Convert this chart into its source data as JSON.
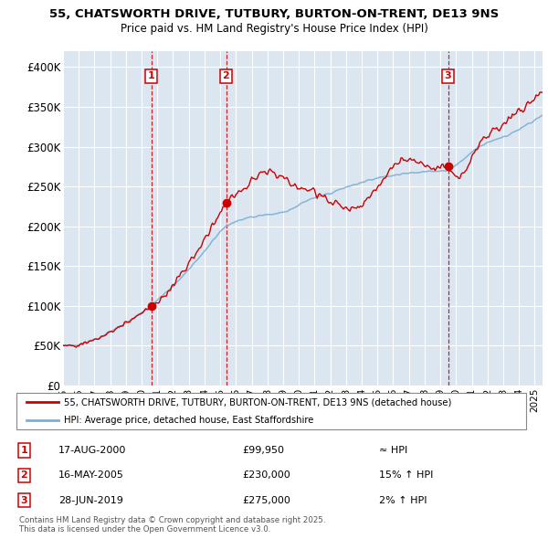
{
  "title_line1": "55, CHATSWORTH DRIVE, TUTBURY, BURTON-ON-TRENT, DE13 9NS",
  "title_line2": "Price paid vs. HM Land Registry's House Price Index (HPI)",
  "background_color": "#ffffff",
  "plot_bg_color": "#dce6f1",
  "grid_color": "#ffffff",
  "hpi_color": "#7bafd4",
  "price_color": "#cc0000",
  "dashed_color": "#cc0000",
  "legend_label_price": "55, CHATSWORTH DRIVE, TUTBURY, BURTON-ON-TRENT, DE13 9NS (detached house)",
  "legend_label_hpi": "HPI: Average price, detached house, East Staffordshire",
  "annotations": [
    {
      "num": 1,
      "date": "17-AUG-2000",
      "price": 99950,
      "rel": "≈ HPI",
      "year": 2000.62
    },
    {
      "num": 2,
      "date": "16-MAY-2005",
      "price": 230000,
      "rel": "15% ↑ HPI",
      "year": 2005.37
    },
    {
      "num": 3,
      "date": "28-JUN-2019",
      "price": 275000,
      "rel": "2% ↑ HPI",
      "year": 2019.49
    }
  ],
  "footnote": "Contains HM Land Registry data © Crown copyright and database right 2025.\nThis data is licensed under the Open Government Licence v3.0.",
  "ylim": [
    0,
    420000
  ],
  "yticks": [
    0,
    50000,
    100000,
    150000,
    200000,
    250000,
    300000,
    350000,
    400000
  ],
  "ytick_labels": [
    "£0",
    "£50K",
    "£100K",
    "£150K",
    "£200K",
    "£250K",
    "£300K",
    "£350K",
    "£400K"
  ],
  "xlim_start": 1995.0,
  "xlim_end": 2025.5
}
